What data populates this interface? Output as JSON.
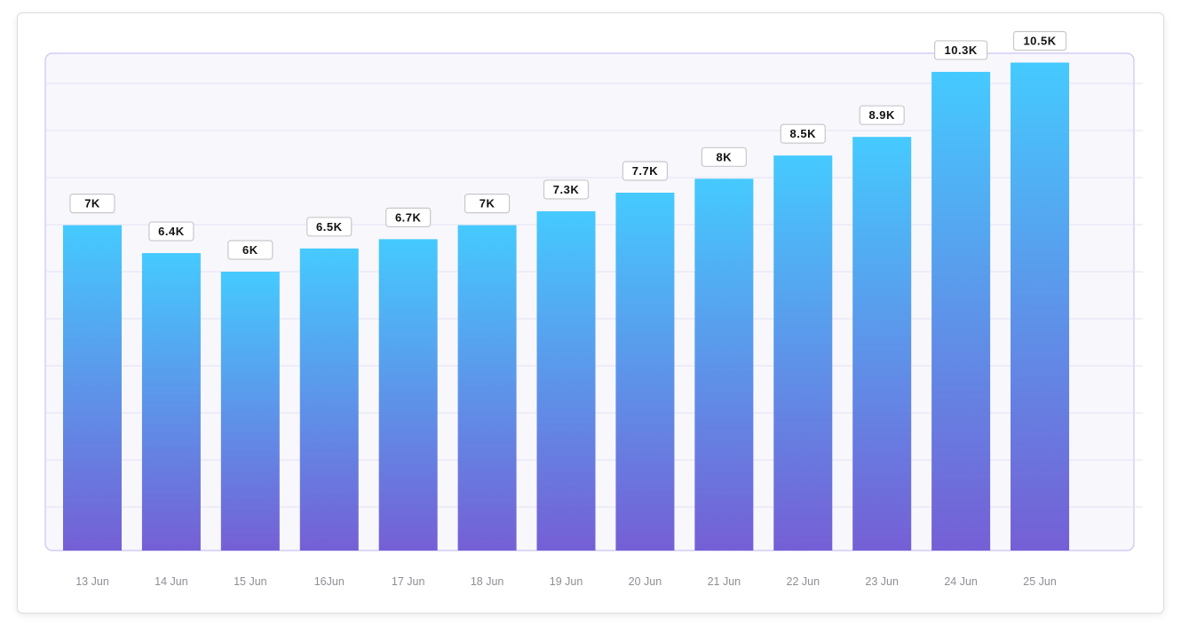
{
  "chart_data": {
    "type": "bar",
    "categories": [
      "13 Jun",
      "14 Jun",
      "15 Jun",
      "16Jun",
      "17 Jun",
      "18 Jun",
      "19 Jun",
      "20 Jun",
      "21 Jun",
      "22 Jun",
      "23 Jun",
      "24 Jun",
      "25 Jun"
    ],
    "values": [
      7000,
      6400,
      6000,
      6500,
      6700,
      7000,
      7300,
      7700,
      8000,
      8500,
      8900,
      10300,
      10500
    ],
    "data_labels": [
      "7K",
      "6.4K",
      "6K",
      "6.5K",
      "6.7K",
      "7K",
      "7.3K",
      "7.7K",
      "8K",
      "8.5K",
      "8.9K",
      "10.3K",
      "10.5K"
    ],
    "title": "",
    "xlabel": "",
    "ylabel": "",
    "ylim": [
      0,
      10700
    ],
    "grid": true,
    "y_tick_labels_shown": false,
    "colors": {
      "bar_top": "#45cafe",
      "bar_bottom": "#755fd5",
      "plot_bg": "#f8f7fc",
      "plot_border": "#cbc3f2",
      "grid": "#e4e1f4"
    }
  }
}
